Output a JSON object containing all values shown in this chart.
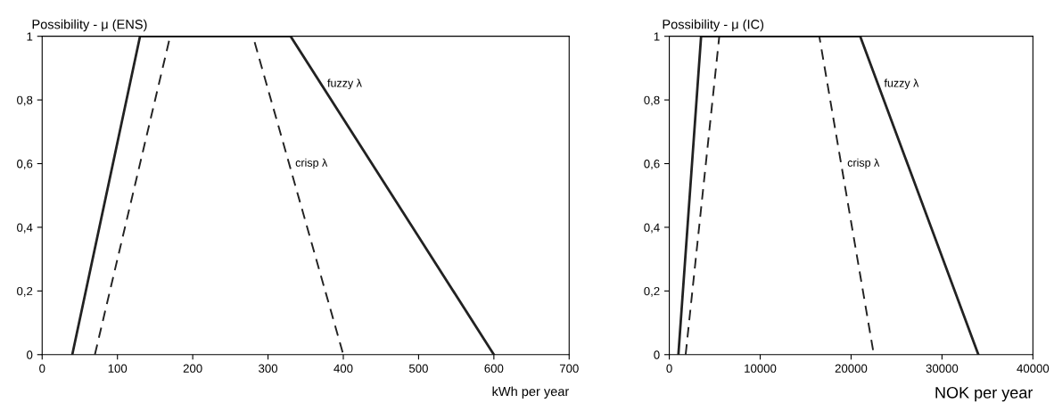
{
  "chart_data": [
    {
      "type": "line",
      "ylabel": "Possibility - μ (ENS)",
      "xlabel": "kWh per year",
      "xlim": [
        0,
        700
      ],
      "xticks": [
        0,
        100,
        200,
        300,
        400,
        500,
        600,
        700
      ],
      "ylim": [
        0,
        1
      ],
      "yticks": [
        0,
        {
          "value": 0.2,
          "label": "0,2"
        },
        {
          "value": 0.4,
          "label": "0,4"
        },
        {
          "value": 0.6,
          "label": "0,6"
        },
        {
          "value": 0.8,
          "label": "0,8"
        },
        1
      ],
      "grid": false,
      "legend": false,
      "marker": "none",
      "series": [
        {
          "name": "fuzzy λ",
          "color": "#222222",
          "line_style": "solid",
          "x": [
            40,
            130,
            330,
            600
          ],
          "values": [
            0,
            1,
            1,
            0
          ]
        },
        {
          "name": "crisp λ",
          "color": "#222222",
          "line_style": "dashed",
          "x": [
            70,
            170,
            280,
            400
          ],
          "values": [
            0,
            1,
            1,
            0
          ]
        }
      ]
    },
    {
      "type": "line",
      "ylabel": "Possibility - μ (IC)",
      "xlabel": "NOK per year",
      "xlim": [
        0,
        40000
      ],
      "xticks": [
        0,
        10000,
        20000,
        30000,
        40000
      ],
      "ylim": [
        0,
        1
      ],
      "yticks": [
        0,
        {
          "value": 0.2,
          "label": "0,2"
        },
        {
          "value": 0.4,
          "label": "0,4"
        },
        {
          "value": 0.6,
          "label": "0,6"
        },
        {
          "value": 0.8,
          "label": "0,8"
        },
        1
      ],
      "grid": false,
      "legend": false,
      "marker": "none",
      "series": [
        {
          "name": "fuzzy λ",
          "color": "#222222",
          "line_style": "solid",
          "x": [
            1000,
            3500,
            21000,
            34000
          ],
          "values": [
            0,
            1,
            1,
            0
          ]
        },
        {
          "name": "crisp λ",
          "color": "#222222",
          "line_style": "dashed",
          "x": [
            1800,
            5500,
            16500,
            22500
          ],
          "values": [
            0,
            1,
            1,
            0
          ]
        }
      ]
    }
  ]
}
